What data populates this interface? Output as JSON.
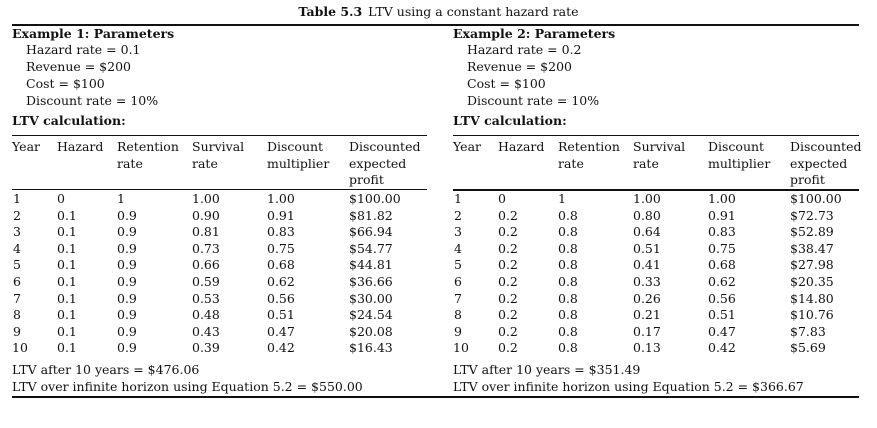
{
  "caption": {
    "label": "Table 5.3",
    "text": "LTV using a constant hazard rate"
  },
  "columns": [
    [
      "Year"
    ],
    [
      "Hazard"
    ],
    [
      "Retention",
      "rate"
    ],
    [
      "Survival",
      "rate"
    ],
    [
      "Discount",
      "multiplier"
    ],
    [
      "Discounted",
      "expected",
      "profit"
    ]
  ],
  "examples": [
    {
      "title": "Example 1: Parameters",
      "params": [
        "Hazard rate = 0.1",
        "Revenue = $200",
        "Cost = $100",
        "Discount rate = 10%"
      ],
      "calc_heading": "LTV calculation:",
      "rows": [
        [
          "1",
          "0",
          "1",
          "1.00",
          "1.00",
          "$100.00"
        ],
        [
          "2",
          "0.1",
          "0.9",
          "0.90",
          "0.91",
          "$81.82"
        ],
        [
          "3",
          "0.1",
          "0.9",
          "0.81",
          "0.83",
          "$66.94"
        ],
        [
          "4",
          "0.1",
          "0.9",
          "0.73",
          "0.75",
          "$54.77"
        ],
        [
          "5",
          "0.1",
          "0.9",
          "0.66",
          "0.68",
          "$44.81"
        ],
        [
          "6",
          "0.1",
          "0.9",
          "0.59",
          "0.62",
          "$36.66"
        ],
        [
          "7",
          "0.1",
          "0.9",
          "0.53",
          "0.56",
          "$30.00"
        ],
        [
          "8",
          "0.1",
          "0.9",
          "0.48",
          "0.51",
          "$24.54"
        ],
        [
          "9",
          "0.1",
          "0.9",
          "0.43",
          "0.47",
          "$20.08"
        ],
        [
          "10",
          "0.1",
          "0.9",
          "0.39",
          "0.42",
          "$16.43"
        ]
      ],
      "ltv_10": "LTV after 10 years = $476.06",
      "ltv_inf": "LTV over infinite horizon using Equation 5.2 = $550.00"
    },
    {
      "title": "Example 2: Parameters",
      "params": [
        "Hazard rate = 0.2",
        "Revenue = $200",
        "Cost = $100",
        "Discount rate = 10%"
      ],
      "calc_heading": "LTV calculation:",
      "rows": [
        [
          "1",
          "0",
          "1",
          "1.00",
          "1.00",
          "$100.00"
        ],
        [
          "2",
          "0.2",
          "0.8",
          "0.80",
          "0.91",
          "$72.73"
        ],
        [
          "3",
          "0.2",
          "0.8",
          "0.64",
          "0.83",
          "$52.89"
        ],
        [
          "4",
          "0.2",
          "0.8",
          "0.51",
          "0.75",
          "$38.47"
        ],
        [
          "5",
          "0.2",
          "0.8",
          "0.41",
          "0.68",
          "$27.98"
        ],
        [
          "6",
          "0.2",
          "0.8",
          "0.33",
          "0.62",
          "$20.35"
        ],
        [
          "7",
          "0.2",
          "0.8",
          "0.26",
          "0.56",
          "$14.80"
        ],
        [
          "8",
          "0.2",
          "0.8",
          "0.21",
          "0.51",
          "$10.76"
        ],
        [
          "9",
          "0.2",
          "0.8",
          "0.17",
          "0.47",
          "$7.83"
        ],
        [
          "10",
          "0.2",
          "0.8",
          "0.13",
          "0.42",
          "$5.69"
        ]
      ],
      "ltv_10": "LTV after 10 years = $351.49",
      "ltv_inf": "LTV over infinite horizon using Equation 5.2 = $366.67"
    }
  ]
}
